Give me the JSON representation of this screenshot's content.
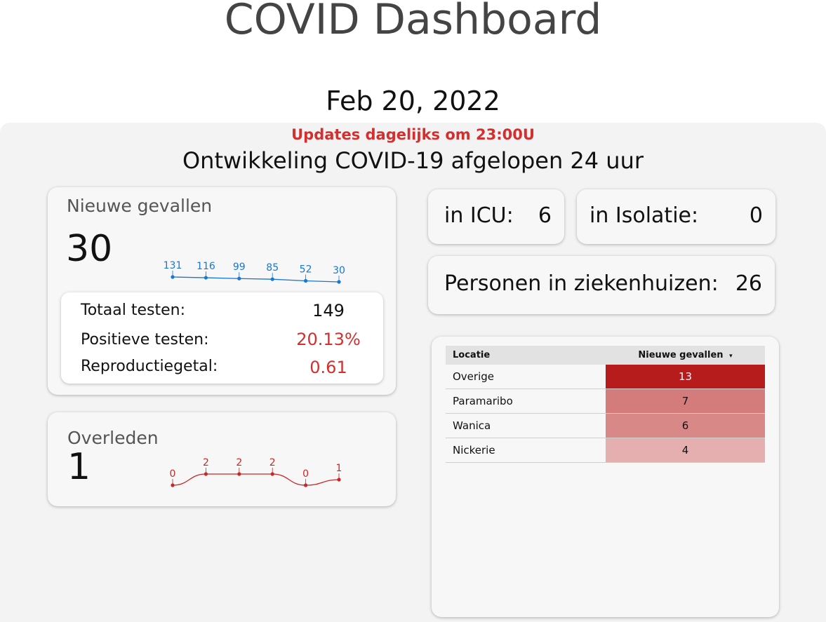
{
  "header": {
    "title": "COVID Dashboard",
    "date": "Feb 20, 2022",
    "updates_note": "Updates dagelijks om 23:00U",
    "subtitle": "Ontwikkeling COVID-19 afgelopen 24 uur"
  },
  "new_cases": {
    "label": "Nieuwe gevallen",
    "value": "30",
    "trend": [
      131,
      116,
      99,
      85,
      52,
      30
    ],
    "color": "#1976d2"
  },
  "tests": {
    "total_label": "Totaal testen:",
    "total_value": "149",
    "positive_label": "Positieve testen:",
    "positive_value": "20.13%",
    "repro_label": "Reproductiegetal:",
    "repro_value": "0.61",
    "highlight_color": "#d32f2f"
  },
  "deaths": {
    "label": "Overleden",
    "value": "1",
    "trend": [
      0,
      2,
      2,
      2,
      0,
      1
    ],
    "color": "#c62828"
  },
  "icu": {
    "label": "in ICU:",
    "value": "6"
  },
  "isolation": {
    "label": "in Isolatie:",
    "value": "0"
  },
  "hospital": {
    "label": "Personen in ziekenhuizen:",
    "value": "26"
  },
  "locations": {
    "col_location": "Locatie",
    "col_cases": "Nieuwe gevallen",
    "sort_icon": "sort-descending-icon",
    "rows": [
      {
        "name": "Overige",
        "cases": "13",
        "bg": "#b71c1c",
        "fg": "#ffffff"
      },
      {
        "name": "Paramaribo",
        "cases": "7",
        "bg": "#d47b7b",
        "fg": "#111111"
      },
      {
        "name": "Wanica",
        "cases": "6",
        "bg": "#d98888",
        "fg": "#111111"
      },
      {
        "name": "Nickerie",
        "cases": "4",
        "bg": "#e6afaf",
        "fg": "#111111"
      }
    ]
  }
}
